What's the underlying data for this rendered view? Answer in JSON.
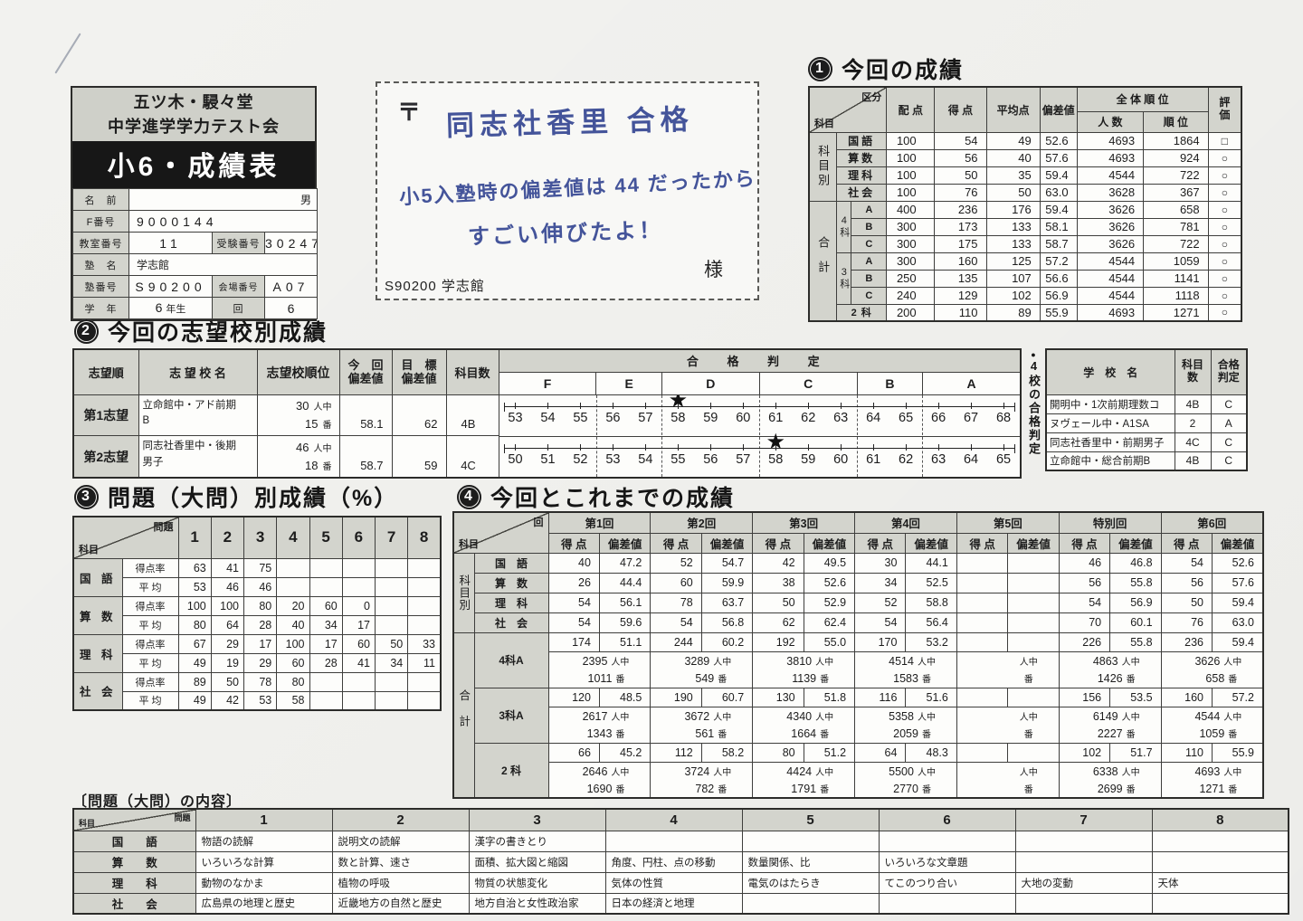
{
  "colors": {
    "paper": "#f6f6f3",
    "header_fill": "#d3d4cd",
    "band_bg": "#171717",
    "band_text": "#ffffff",
    "hand_ink": "#44549a",
    "star": "#111111"
  },
  "id_card": {
    "org_line1": "五ツ木・駸々堂",
    "org_line2": "中学進学学力テスト会",
    "banner": "小6・成績表",
    "name_label": "名　前",
    "name_value": "",
    "gender": "男",
    "f_label": "F番号",
    "f_value": "9000144",
    "room_label": "教室番号",
    "room_value": "11",
    "exam_label": "受験番号",
    "exam_value": "30247",
    "juku_label": "塾　名",
    "juku_value": "学志館",
    "jukuno_label": "塾番号",
    "jukuno_value": "S90200",
    "venue_label": "会場番号",
    "venue_value": "A07",
    "grade_label": "学　年",
    "grade_value": "6",
    "grade_unit": "年生",
    "round_label": "回",
    "round_value": "6"
  },
  "note_card": {
    "postal": "〒",
    "line1": "同志社香里 合格",
    "line2": "小5入塾時の偏差値は 44 だったから",
    "line3": "すごい伸びたよ！",
    "sama": "様",
    "footer": "S90200  学志館"
  },
  "s1": {
    "badge": "1",
    "title": "今回の成績",
    "corner_top": "区分",
    "corner_bottom": "科目",
    "h_haiten": "配 点",
    "h_tokuten": "得 点",
    "h_heikin": "平均点",
    "h_hensachi": "偏差値",
    "h_zentai": "全 体 順 位",
    "h_ninzu": "人 数",
    "h_juni": "順 位",
    "h_hyoka": [
      "評",
      "価"
    ],
    "g_kamokubetsu": "科目別",
    "g_gokei": "合計",
    "g_4ka": "4科",
    "g_3ka": "3科",
    "g_2ka": "2 科",
    "rows_subject": [
      [
        "国語",
        "100",
        "54",
        "49",
        "52.6",
        "4693",
        "1864",
        "□"
      ],
      [
        "算数",
        "100",
        "56",
        "40",
        "57.6",
        "4693",
        "924",
        "○"
      ],
      [
        "理科",
        "100",
        "50",
        "35",
        "59.4",
        "4544",
        "722",
        "○"
      ],
      [
        "社会",
        "100",
        "76",
        "50",
        "63.0",
        "3628",
        "367",
        "○"
      ]
    ],
    "rows_4ka": [
      [
        "A",
        "400",
        "236",
        "176",
        "59.4",
        "3626",
        "658",
        "○"
      ],
      [
        "B",
        "300",
        "173",
        "133",
        "58.1",
        "3626",
        "781",
        "○"
      ],
      [
        "C",
        "300",
        "175",
        "133",
        "58.7",
        "3626",
        "722",
        "○"
      ]
    ],
    "rows_3ka": [
      [
        "A",
        "300",
        "160",
        "125",
        "57.2",
        "4544",
        "1059",
        "○"
      ],
      [
        "B",
        "250",
        "135",
        "107",
        "56.6",
        "4544",
        "1141",
        "○"
      ],
      [
        "C",
        "240",
        "129",
        "102",
        "56.9",
        "4544",
        "1118",
        "○"
      ]
    ],
    "row_2ka": [
      "200",
      "110",
      "89",
      "55.9",
      "4693",
      "1271",
      "○"
    ]
  },
  "s2": {
    "badge": "2",
    "title": "今回の志望校別成績",
    "h_rank": "志望順",
    "h_school": "志 望 校 名",
    "h_order": "志望校順位",
    "h_now": [
      "今　回",
      "偏差値"
    ],
    "h_target": [
      "目　標",
      "偏差値"
    ],
    "h_subj": "科目数",
    "h_judge": "合 格 判 定",
    "grades": [
      "F",
      "E",
      "D",
      "C",
      "B",
      "A"
    ],
    "ninchu": "人中",
    "ban": "番",
    "star": "★",
    "rows": [
      {
        "rank": "第1志望",
        "school1": "立命館中・アド前期",
        "school2": "B",
        "n": "30",
        "pos": "15",
        "hensachi": "58.1",
        "target": "62",
        "subjects": "4B",
        "scale": [
          "53",
          "54",
          "55",
          "56",
          "57",
          "58",
          "59",
          "60",
          "61",
          "62",
          "63",
          "64",
          "65",
          "66",
          "67",
          "68"
        ],
        "star_index": 5
      },
      {
        "rank": "第2志望",
        "school1": "同志社香里中・後期",
        "school2": "男子",
        "n": "46",
        "pos": "18",
        "hensachi": "58.7",
        "target": "59",
        "subjects": "4C",
        "scale": [
          "50",
          "51",
          "52",
          "53",
          "54",
          "55",
          "56",
          "57",
          "58",
          "59",
          "60",
          "61",
          "62",
          "63",
          "64",
          "65"
        ],
        "star_index": 8
      }
    ]
  },
  "s4schools": {
    "bullet": "●",
    "side_label": "4校の合格判定",
    "h_school": "学　校　名",
    "h_subj": [
      "科目",
      "数"
    ],
    "h_judge": [
      "合格",
      "判定"
    ],
    "rows": [
      [
        "開明中・1次前期理数コ",
        "4B",
        "C"
      ],
      [
        "ヌヴェール中・A1SA",
        "2",
        "A"
      ],
      [
        "同志社香里中・前期男子",
        "4C",
        "C"
      ],
      [
        "立命館中・総合前期B",
        "4B",
        "C"
      ]
    ]
  },
  "s3": {
    "badge": "3",
    "title": "問題（大問）別成績（%）",
    "corner_top": "問題",
    "corner_bottom": "科目",
    "cols": [
      "1",
      "2",
      "3",
      "4",
      "5",
      "6",
      "7",
      "8"
    ],
    "kind_rate": "得点率",
    "kind_avg": "平 均",
    "groups": [
      {
        "subject": "国 語",
        "rate": [
          "63",
          "41",
          "75",
          "",
          "",
          "",
          "",
          ""
        ],
        "avg": [
          "53",
          "46",
          "46",
          "",
          "",
          "",
          "",
          ""
        ]
      },
      {
        "subject": "算 数",
        "rate": [
          "100",
          "100",
          "80",
          "20",
          "60",
          "0",
          "",
          ""
        ],
        "avg": [
          "80",
          "64",
          "28",
          "40",
          "34",
          "17",
          "",
          ""
        ]
      },
      {
        "subject": "理 科",
        "rate": [
          "67",
          "29",
          "17",
          "100",
          "17",
          "60",
          "50",
          "33"
        ],
        "avg": [
          "49",
          "19",
          "29",
          "60",
          "28",
          "41",
          "34",
          "11"
        ]
      },
      {
        "subject": "社 会",
        "rate": [
          "89",
          "50",
          "78",
          "80",
          "",
          "",
          "",
          ""
        ],
        "avg": [
          "49",
          "42",
          "53",
          "58",
          "",
          "",
          "",
          ""
        ]
      }
    ]
  },
  "s4": {
    "badge": "4",
    "title": "今回とこれまでの成績",
    "corner_top": "回",
    "corner_bottom": "科目",
    "rounds": [
      "第1回",
      "第2回",
      "第3回",
      "第4回",
      "第5回",
      "特別回",
      "第6回"
    ],
    "h_tokuten": "得 点",
    "h_hensachi": "偏差値",
    "g_kamoku": "科目別",
    "g_gokei": "合計",
    "ninchu": "人中",
    "ban": "番",
    "subjects": [
      {
        "name": "国　語",
        "vals": [
          "40",
          "47.2",
          "52",
          "54.7",
          "42",
          "49.5",
          "30",
          "44.1",
          "",
          "",
          "46",
          "46.8",
          "54",
          "52.6"
        ]
      },
      {
        "name": "算　数",
        "vals": [
          "26",
          "44.4",
          "60",
          "59.9",
          "38",
          "52.6",
          "34",
          "52.5",
          "",
          "",
          "56",
          "55.8",
          "56",
          "57.6"
        ]
      },
      {
        "name": "理　科",
        "vals": [
          "54",
          "56.1",
          "78",
          "63.7",
          "50",
          "52.9",
          "52",
          "58.8",
          "",
          "",
          "54",
          "56.9",
          "50",
          "59.4"
        ]
      },
      {
        "name": "社　会",
        "vals": [
          "54",
          "59.6",
          "54",
          "56.8",
          "62",
          "62.4",
          "54",
          "56.4",
          "",
          "",
          "70",
          "60.1",
          "76",
          "63.0"
        ]
      }
    ],
    "totals": [
      {
        "name": "4科A",
        "score": [
          "174",
          "51.1",
          "244",
          "60.2",
          "192",
          "55.0",
          "170",
          "53.2",
          "",
          "",
          "226",
          "55.8",
          "236",
          "59.4"
        ],
        "ninchu_vals": [
          "2395",
          "3289",
          "3810",
          "4514",
          "",
          "4863",
          "3626"
        ],
        "ban_vals": [
          "1011",
          "549",
          "1139",
          "1583",
          "",
          "1426",
          "658"
        ]
      },
      {
        "name": "3科A",
        "score": [
          "120",
          "48.5",
          "190",
          "60.7",
          "130",
          "51.8",
          "116",
          "51.6",
          "",
          "",
          "156",
          "53.5",
          "160",
          "57.2"
        ],
        "ninchu_vals": [
          "2617",
          "3672",
          "4340",
          "5358",
          "",
          "6149",
          "4544"
        ],
        "ban_vals": [
          "1343",
          "561",
          "1664",
          "2059",
          "",
          "2227",
          "1059"
        ]
      },
      {
        "name": "2 科",
        "score": [
          "66",
          "45.2",
          "112",
          "58.2",
          "80",
          "51.2",
          "64",
          "48.3",
          "",
          "",
          "102",
          "51.7",
          "110",
          "55.9"
        ],
        "ninchu_vals": [
          "2646",
          "3724",
          "4424",
          "5500",
          "",
          "6338",
          "4693"
        ],
        "ban_vals": [
          "1690",
          "782",
          "1791",
          "2770",
          "",
          "2699",
          "1271"
        ]
      }
    ]
  },
  "s5": {
    "title": "〔問題（大問）の内容〕",
    "corner_top": "問題",
    "corner_bottom": "科目",
    "cols": [
      "1",
      "2",
      "3",
      "4",
      "5",
      "6",
      "7",
      "8"
    ],
    "rows": [
      {
        "subject": "国　　語",
        "cells": [
          "物語の読解",
          "説明文の読解",
          "漢字の書きとり",
          "",
          "",
          "",
          "",
          ""
        ]
      },
      {
        "subject": "算　　数",
        "cells": [
          "いろいろな計算",
          "数と計算、速さ",
          "面積、拡大図と縮図",
          "角度、円柱、点の移動",
          "数量関係、比",
          "いろいろな文章題",
          "",
          ""
        ]
      },
      {
        "subject": "理　　科",
        "cells": [
          "動物のなかま",
          "植物の呼吸",
          "物質の状態変化",
          "気体の性質",
          "電気のはたらき",
          "てこのつり合い",
          "大地の変動",
          "天体"
        ]
      },
      {
        "subject": "社　　会",
        "cells": [
          "広島県の地理と歴史",
          "近畿地方の自然と歴史",
          "地方自治と女性政治家",
          "日本の経済と地理",
          "",
          "",
          "",
          ""
        ]
      }
    ]
  }
}
